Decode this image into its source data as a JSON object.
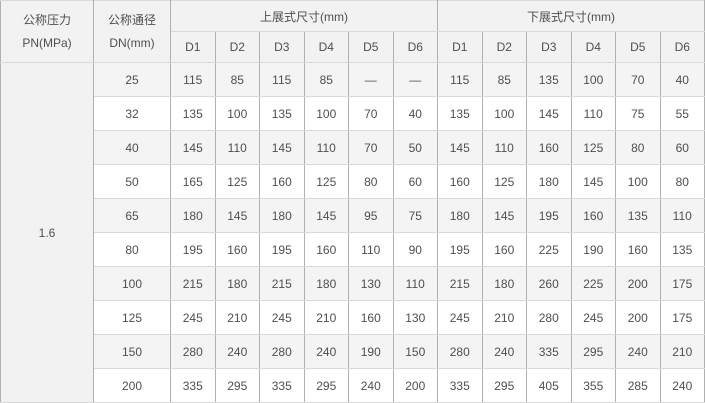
{
  "colors": {
    "header_bg": "#f2f2f2",
    "stripe_bg": "#f4f4f4",
    "white_bg": "#ffffff",
    "text_color": "#4f4f4f",
    "border_outer": "#999999",
    "border_vertical": "#b0b0b0",
    "border_horizontal": "#d9d9d9"
  },
  "chart_data": {
    "type": "table",
    "header": {
      "pressure_cn": "公称压力",
      "pressure_en": "PN(MPa)",
      "diameter_cn": "公称通径",
      "diameter_en": "DN(mm)",
      "group_upper": "上展式尺寸(mm)",
      "group_lower": "下展式尺寸(mm)",
      "sub_columns": [
        "D1",
        "D2",
        "D3",
        "D4",
        "D5",
        "D6"
      ]
    },
    "pressure_value": "1.6",
    "rows": [
      {
        "dn": "25",
        "upper": [
          "115",
          "85",
          "115",
          "85",
          "—",
          "—"
        ],
        "lower": [
          "115",
          "85",
          "135",
          "100",
          "70",
          "40"
        ]
      },
      {
        "dn": "32",
        "upper": [
          "135",
          "100",
          "135",
          "100",
          "70",
          "40"
        ],
        "lower": [
          "135",
          "100",
          "145",
          "110",
          "75",
          "55"
        ]
      },
      {
        "dn": "40",
        "upper": [
          "145",
          "110",
          "145",
          "110",
          "70",
          "50"
        ],
        "lower": [
          "145",
          "110",
          "160",
          "125",
          "80",
          "60"
        ]
      },
      {
        "dn": "50",
        "upper": [
          "165",
          "125",
          "160",
          "125",
          "80",
          "60"
        ],
        "lower": [
          "160",
          "125",
          "180",
          "145",
          "100",
          "80"
        ]
      },
      {
        "dn": "65",
        "upper": [
          "180",
          "145",
          "180",
          "145",
          "95",
          "75"
        ],
        "lower": [
          "180",
          "145",
          "195",
          "160",
          "135",
          "110"
        ]
      },
      {
        "dn": "80",
        "upper": [
          "195",
          "160",
          "195",
          "160",
          "110",
          "90"
        ],
        "lower": [
          "195",
          "160",
          "225",
          "190",
          "160",
          "135"
        ]
      },
      {
        "dn": "100",
        "upper": [
          "215",
          "180",
          "215",
          "180",
          "130",
          "110"
        ],
        "lower": [
          "215",
          "180",
          "260",
          "225",
          "200",
          "175"
        ]
      },
      {
        "dn": "125",
        "upper": [
          "245",
          "210",
          "245",
          "210",
          "160",
          "130"
        ],
        "lower": [
          "245",
          "210",
          "280",
          "245",
          "200",
          "175"
        ]
      },
      {
        "dn": "150",
        "upper": [
          "280",
          "240",
          "280",
          "240",
          "190",
          "150"
        ],
        "lower": [
          "280",
          "240",
          "335",
          "295",
          "240",
          "210"
        ]
      },
      {
        "dn": "200",
        "upper": [
          "335",
          "295",
          "335",
          "295",
          "240",
          "200"
        ],
        "lower": [
          "335",
          "295",
          "405",
          "355",
          "285",
          "240"
        ]
      }
    ]
  }
}
